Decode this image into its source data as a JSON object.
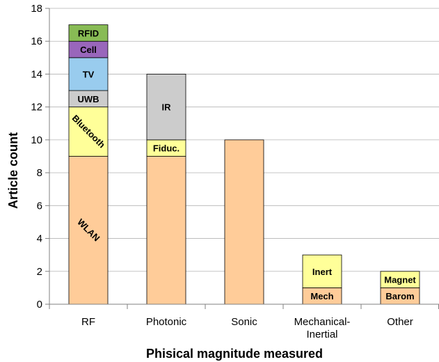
{
  "chart_data": {
    "type": "bar",
    "stacked": true,
    "xlabel": "Phisical magnitude measured",
    "ylabel": "Article count",
    "ylim": [
      0,
      18
    ],
    "yticks": [
      0,
      2,
      4,
      6,
      8,
      10,
      12,
      14,
      16,
      18
    ],
    "grid": true,
    "categories": [
      [
        "RF"
      ],
      [
        "Photonic"
      ],
      [
        "Sonic"
      ],
      [
        "Mechanical-",
        "Inertial"
      ],
      [
        "Other"
      ]
    ],
    "stacks": [
      [
        {
          "label": "WLAN",
          "value": 9,
          "color": "#FFCC99",
          "rotate": true
        },
        {
          "label": "Bluetooth",
          "value": 3,
          "color": "#FFFF99",
          "rotate": true
        },
        {
          "label": "UWB",
          "value": 1,
          "color": "#CCCCCC"
        },
        {
          "label": "TV",
          "value": 2,
          "color": "#99CCEE"
        },
        {
          "label": "Cell",
          "value": 1,
          "color": "#9966BB"
        },
        {
          "label": "RFID",
          "value": 1,
          "color": "#88BB55"
        }
      ],
      [
        {
          "label": "",
          "value": 9,
          "color": "#FFCC99"
        },
        {
          "label": "Fiduc.",
          "value": 1,
          "color": "#FFFF99"
        },
        {
          "label": "IR",
          "value": 4,
          "color": "#CCCCCC"
        }
      ],
      [
        {
          "label": "",
          "value": 10,
          "color": "#FFCC99"
        }
      ],
      [
        {
          "label": "Mech",
          "value": 1,
          "color": "#FFCC99"
        },
        {
          "label": "Inert",
          "value": 2,
          "color": "#FFFF99"
        }
      ],
      [
        {
          "label": "Barom",
          "value": 1,
          "color": "#FFCC99"
        },
        {
          "label": "Magnet",
          "value": 1,
          "color": "#FFFF99"
        }
      ]
    ]
  }
}
